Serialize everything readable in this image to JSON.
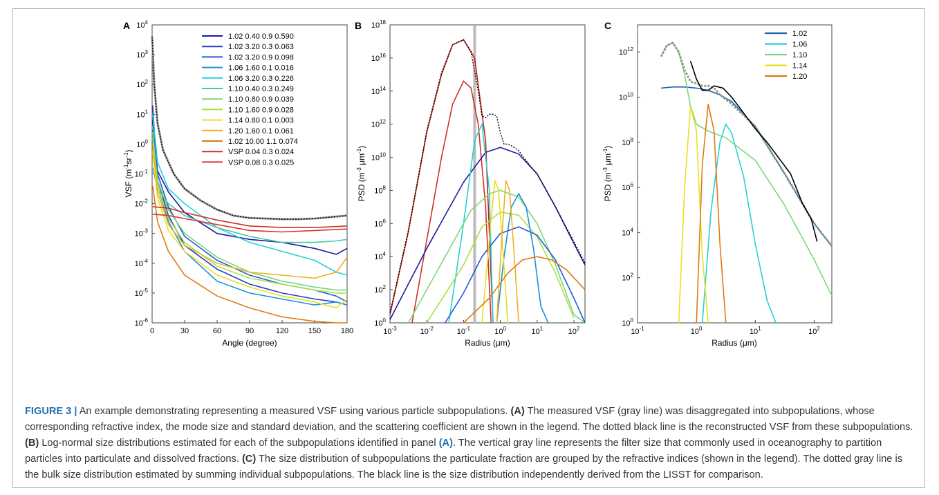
{
  "caption": {
    "figure_label": "FIGURE 3 |",
    "seg1": " An example demonstrating representing a measured VSF using various particle subpopulations. ",
    "b1": "(A)",
    "seg2": " The measured VSF (gray line) was disaggregated into subpopulations, whose corresponding refractive index, the mode size and standard deviation, and the scattering coefficient are shown in the legend. The dotted black line is the reconstructed VSF from these subpopulations. ",
    "b2": "(B)",
    "seg3": " Log-normal size distributions estimated for each of the subpopulations identified in panel ",
    "b3": "(A)",
    "seg4": ". The vertical gray line represents the filter size that commonly used in oceanography to partition particles into particulate and dissolved fractions. ",
    "b4": "(C)",
    "seg5": " The size distribution of subpopulations the particulate fraction are grouped by the refractive indices (shown in the legend). The dotted gray line is the bulk size distribution estimated by summing individual subpopulations. The black line is the size distribution independently derived from the LISST for comparison."
  },
  "chart_data": [
    {
      "panel": "A",
      "type": "line",
      "xlabel": "Angle (degree)",
      "ylabel": "VSF (m-1sr-1)",
      "xlim": [
        0,
        180
      ],
      "ylim_log10": [
        -6,
        4
      ],
      "y_scale": "log",
      "x_ticks": [
        0,
        30,
        60,
        90,
        120,
        150,
        180
      ],
      "y_ticks_exp": [
        -6,
        -5,
        -4,
        -3,
        -2,
        -1,
        0,
        1,
        2,
        3,
        4
      ],
      "legend_position": "top-right",
      "series": [
        {
          "name": "1.02  0.40  0.9  0.590",
          "color": "#1a1aa0",
          "x": [
            0.5,
            5,
            15,
            30,
            60,
            90,
            120,
            150,
            170,
            180
          ],
          "y_log10": [
            0.8,
            -0.9,
            -1.6,
            -2.3,
            -3.0,
            -3.2,
            -3.3,
            -3.5,
            -3.7,
            -3.5
          ]
        },
        {
          "name": "1.02  3.20  0.3  0.063",
          "color": "#2040c8",
          "x": [
            0.5,
            5,
            15,
            30,
            60,
            90,
            120,
            150,
            170,
            180
          ],
          "y_log10": [
            1.3,
            -1.2,
            -2.4,
            -3.4,
            -4.2,
            -4.7,
            -5.0,
            -5.2,
            -5.3,
            -5.4
          ]
        },
        {
          "name": "1.02  3.20  0.9  0.098",
          "color": "#1e5cd8",
          "x": [
            0.5,
            5,
            15,
            30,
            60,
            90,
            120,
            150,
            170,
            180
          ],
          "y_log10": [
            1.0,
            -1.0,
            -2.1,
            -3.1,
            -3.9,
            -4.4,
            -4.7,
            -4.9,
            -5.1,
            -5.3
          ]
        },
        {
          "name": "1.06  1.60  0.1  0.016",
          "color": "#1b8fd8",
          "x": [
            0.5,
            5,
            15,
            30,
            60,
            90,
            120,
            150,
            170,
            180
          ],
          "y_log10": [
            0.5,
            -1.4,
            -2.6,
            -3.6,
            -4.6,
            -5.0,
            -5.2,
            -5.4,
            -5.3,
            -5.4
          ]
        },
        {
          "name": "1.06  3.20  0.3  0.226",
          "color": "#25d0d8",
          "x": [
            0.5,
            5,
            15,
            30,
            60,
            90,
            120,
            150,
            170,
            180
          ],
          "y_log10": [
            1.0,
            -0.6,
            -1.5,
            -2.0,
            -2.8,
            -3.3,
            -3.6,
            -3.9,
            -4.3,
            -4.4
          ]
        },
        {
          "name": "1.10  0.40  0.3  0.249",
          "color": "#44c8a8",
          "x": [
            0.5,
            5,
            15,
            30,
            60,
            90,
            120,
            150,
            170,
            180
          ],
          "y_log10": [
            -0.8,
            -1.5,
            -2.0,
            -2.4,
            -2.8,
            -3.1,
            -3.3,
            -3.3,
            -3.25,
            -3.2
          ]
        },
        {
          "name": "1.10  0.80  0.9  0.039",
          "color": "#7ad878",
          "x": [
            0.5,
            5,
            15,
            30,
            60,
            90,
            120,
            150,
            170,
            180
          ],
          "y_log10": [
            0.2,
            -1.2,
            -2.2,
            -3.0,
            -3.8,
            -4.3,
            -4.6,
            -4.8,
            -4.9,
            -4.9
          ]
        },
        {
          "name": "1.10  1.60  0.9  0.028",
          "color": "#a8e040",
          "x": [
            0.5,
            5,
            15,
            30,
            60,
            90,
            120,
            150,
            170,
            180
          ],
          "y_log10": [
            0.4,
            -1.4,
            -2.5,
            -3.3,
            -4.1,
            -4.5,
            -4.7,
            -4.9,
            -5.0,
            -5.0
          ]
        },
        {
          "name": "1.14  0.80  0.1  0.003",
          "color": "#e8e020",
          "x": [
            0.5,
            5,
            15,
            30,
            60,
            90,
            120,
            150,
            170,
            180
          ],
          "y_log10": [
            -0.3,
            -1.8,
            -2.9,
            -3.6,
            -4.4,
            -4.8,
            -5.1,
            -5.3,
            -5.5,
            -5.2
          ]
        },
        {
          "name": "1.20  1.60  0.1  0.061",
          "color": "#f0b020",
          "x": [
            0.5,
            5,
            15,
            30,
            60,
            90,
            120,
            150,
            170,
            180
          ],
          "y_log10": [
            0.0,
            -1.6,
            -2.7,
            -3.4,
            -4.0,
            -4.3,
            -4.4,
            -4.5,
            -4.3,
            -3.8
          ]
        },
        {
          "name": "1.02  10.00  1.1  0.074",
          "color": "#e07a10",
          "x": [
            0.5,
            5,
            15,
            30,
            60,
            90,
            120,
            150,
            170,
            180
          ],
          "y_log10": [
            -1.4,
            -2.6,
            -3.6,
            -4.4,
            -5.1,
            -5.5,
            -5.8,
            -5.95,
            -6.0,
            -6.0
          ]
        },
        {
          "name": "VSP  0.04  0.3  0.024",
          "color": "#d03020",
          "x": [
            0.5,
            15,
            30,
            60,
            90,
            120,
            150,
            180
          ],
          "y_log10": [
            -2.1,
            -2.15,
            -2.3,
            -2.55,
            -2.75,
            -2.8,
            -2.8,
            -2.75
          ]
        },
        {
          "name": "VSP  0.08  0.3  0.025",
          "color": "#e03030",
          "x": [
            0.5,
            15,
            30,
            60,
            90,
            120,
            150,
            180
          ],
          "y_log10": [
            -2.35,
            -2.4,
            -2.5,
            -2.7,
            -2.9,
            -2.95,
            -2.9,
            -2.85
          ]
        }
      ],
      "measured": {
        "x": [
          0,
          2,
          5,
          10,
          20,
          30,
          45,
          60,
          75,
          90,
          105,
          120,
          135,
          150,
          165,
          180
        ],
        "y_log10": [
          3.6,
          2.0,
          0.7,
          -0.2,
          -1.0,
          -1.5,
          -1.9,
          -2.2,
          -2.4,
          -2.48,
          -2.5,
          -2.52,
          -2.52,
          -2.5,
          -2.45,
          -2.4
        ]
      }
    },
    {
      "panel": "B",
      "type": "line",
      "xlabel": "Radius (μm)",
      "ylabel": "PSD (m-3 μm-1)",
      "x_scale": "log",
      "y_scale": "log",
      "xlim_log10": [
        -3,
        2.3
      ],
      "ylim_log10": [
        0,
        18
      ],
      "x_ticks_exp": [
        -3,
        -2,
        -1,
        0,
        1,
        2
      ],
      "y_ticks_exp": [
        0,
        2,
        4,
        6,
        8,
        10,
        12,
        14,
        16,
        18
      ],
      "filter_size_um": 0.2,
      "series": [
        {
          "color": "#c02010",
          "x_log10": [
            -3.0,
            -2.5,
            -2.0,
            -1.6,
            -1.3,
            -1.0,
            -0.7,
            -0.4,
            -0.2
          ],
          "y_log10": [
            0.5,
            5.5,
            11.5,
            15.0,
            16.8,
            17.1,
            16.0,
            11.0,
            0
          ]
        },
        {
          "color": "#d03020",
          "x_log10": [
            -2.4,
            -2.0,
            -1.6,
            -1.3,
            -1.0,
            -0.8,
            -0.6,
            -0.4,
            -0.25
          ],
          "y_log10": [
            0,
            5.0,
            10.0,
            13.2,
            14.6,
            14.2,
            12.0,
            7.0,
            0
          ]
        },
        {
          "color": "#1a1aa0",
          "x_log10": [
            -3.0,
            -2.0,
            -1.0,
            -0.4,
            0.0,
            0.5,
            1.0,
            1.5,
            2.0,
            2.3
          ],
          "y_log10": [
            0.2,
            4.5,
            8.5,
            10.3,
            10.6,
            10.2,
            9.0,
            7.0,
            4.8,
            3.5
          ]
        },
        {
          "color": "#25d0d8",
          "x_log10": [
            -1.4,
            -1.0,
            -0.7,
            -0.5,
            -0.3,
            -0.2
          ],
          "y_log10": [
            0,
            6.0,
            11.0,
            12.0,
            8.0,
            0
          ]
        },
        {
          "color": "#7ad878",
          "x_log10": [
            -2.5,
            -1.5,
            -0.8,
            -0.3,
            0.0,
            0.5,
            1.0,
            1.5,
            2.0,
            2.3
          ],
          "y_log10": [
            0,
            4.0,
            6.8,
            7.8,
            8.0,
            7.6,
            6.0,
            3.5,
            0.5,
            0
          ]
        },
        {
          "color": "#a8e040",
          "x_log10": [
            -2.0,
            -1.0,
            -0.5,
            0.0,
            0.5,
            1.0,
            1.5,
            2.0
          ],
          "y_log10": [
            0,
            3.5,
            5.8,
            6.7,
            6.5,
            5.2,
            3.0,
            0.3
          ]
        },
        {
          "color": "#1e5cd8",
          "x_log10": [
            -1.5,
            -1.0,
            -0.5,
            0.0,
            0.5,
            1.0,
            1.5,
            2.0,
            2.3
          ],
          "y_log10": [
            0,
            1.8,
            4.0,
            5.4,
            5.8,
            5.3,
            3.8,
            1.5,
            0
          ]
        },
        {
          "color": "#1b8fd8",
          "x_log10": [
            -0.1,
            0.1,
            0.3,
            0.5,
            0.7,
            0.9,
            1.1,
            1.3
          ],
          "y_log10": [
            0,
            4.0,
            7.0,
            7.8,
            7.0,
            4.5,
            1.0,
            0
          ]
        },
        {
          "color": "#e8e020",
          "x_log10": [
            -0.5,
            -0.3,
            -0.15,
            -0.05,
            0.05,
            0.2
          ],
          "y_log10": [
            0,
            5.0,
            8.6,
            8.0,
            5.0,
            0
          ]
        },
        {
          "color": "#f0b020",
          "x_log10": [
            -0.1,
            0.05,
            0.15,
            0.25,
            0.35,
            0.5
          ],
          "y_log10": [
            0,
            5.5,
            8.6,
            8.0,
            5.0,
            0
          ]
        },
        {
          "color": "#e07a10",
          "x_log10": [
            -1.0,
            -0.3,
            0.2,
            0.6,
            1.0,
            1.4,
            1.8,
            2.3
          ],
          "y_log10": [
            0,
            1.5,
            3.0,
            3.8,
            4.0,
            3.8,
            3.2,
            2.0
          ]
        }
      ],
      "bulk": {
        "x_log10": [
          -3.0,
          -2.5,
          -2.0,
          -1.6,
          -1.3,
          -1.0,
          -0.8,
          -0.6,
          -0.5,
          -0.4,
          -0.3,
          -0.2,
          -0.1,
          0.0,
          0.1,
          0.2,
          0.3,
          0.5,
          0.8,
          1.0,
          1.5,
          2.0,
          2.3
        ],
        "y_log10": [
          0.6,
          5.6,
          11.6,
          15.1,
          16.8,
          17.1,
          16.4,
          14.0,
          12.5,
          12.4,
          12.6,
          12.6,
          12.5,
          11.5,
          10.8,
          10.8,
          10.7,
          10.4,
          9.5,
          9.0,
          7.0,
          4.9,
          3.6
        ]
      }
    },
    {
      "panel": "C",
      "type": "line",
      "xlabel": "Radius (μm)",
      "ylabel": "PSD (m-3 μm-1)",
      "x_scale": "log",
      "y_scale": "log",
      "xlim_log10": [
        -1,
        2.3
      ],
      "ylim_log10": [
        0,
        13.2
      ],
      "x_ticks_exp": [
        -1,
        0,
        1,
        2
      ],
      "y_ticks_exp": [
        0,
        2,
        4,
        6,
        8,
        10,
        12
      ],
      "legend_position": "top-right",
      "series": [
        {
          "name": "1.02",
          "color": "#1a60b8",
          "x_log10": [
            -0.6,
            -0.4,
            -0.2,
            0.0,
            0.2,
            0.4,
            0.6,
            1.0,
            1.5,
            2.0,
            2.3
          ],
          "y_log10": [
            10.4,
            10.45,
            10.45,
            10.4,
            10.3,
            10.1,
            9.8,
            8.7,
            6.6,
            4.4,
            3.4
          ]
        },
        {
          "name": "1.06",
          "color": "#25d0d8",
          "x_log10": [
            0.1,
            0.25,
            0.4,
            0.5,
            0.6,
            0.8,
            1.0,
            1.2,
            1.35
          ],
          "y_log10": [
            0,
            5.0,
            8.0,
            8.8,
            8.4,
            6.5,
            3.5,
            1.0,
            0
          ]
        },
        {
          "name": "1.10",
          "color": "#7ad878",
          "x_log10": [
            -0.6,
            -0.5,
            -0.4,
            -0.3,
            -0.2,
            -0.1,
            0.0,
            0.2,
            0.5,
            1.0,
            1.5,
            2.0,
            2.3
          ],
          "y_log10": [
            11.8,
            12.3,
            12.4,
            12.0,
            11.0,
            9.6,
            8.8,
            8.5,
            8.2,
            7.2,
            5.2,
            2.8,
            1.2
          ]
        },
        {
          "name": "1.14",
          "color": "#e8e020",
          "x_log10": [
            -0.3,
            -0.2,
            -0.1,
            0.0,
            0.1,
            0.2
          ],
          "y_log10": [
            0,
            6.0,
            9.6,
            8.5,
            3.0,
            0
          ]
        },
        {
          "name": "1.20",
          "color": "#e07a10",
          "x_log10": [
            0.0,
            0.1,
            0.2,
            0.3,
            0.4,
            0.5
          ],
          "y_log10": [
            0,
            7.0,
            9.7,
            8.5,
            3.5,
            0
          ]
        }
      ],
      "bulk": {
        "x_log10": [
          -0.6,
          -0.5,
          -0.4,
          -0.3,
          -0.2,
          -0.1,
          0.0,
          0.1,
          0.2,
          0.3,
          0.4,
          0.6,
          1.0,
          1.5,
          2.0,
          2.3
        ],
        "y_log10": [
          11.8,
          12.3,
          12.4,
          12.0,
          11.2,
          10.7,
          10.6,
          10.5,
          10.5,
          10.4,
          10.1,
          9.7,
          8.7,
          6.6,
          4.4,
          3.4
        ]
      },
      "lisst": {
        "x_log10": [
          -0.1,
          0.0,
          0.1,
          0.2,
          0.3,
          0.45,
          0.6,
          0.8,
          1.0,
          1.2,
          1.4,
          1.6,
          1.8,
          1.95,
          2.05
        ],
        "y_log10": [
          11.6,
          10.8,
          10.3,
          10.3,
          10.5,
          10.4,
          10.0,
          9.3,
          8.6,
          8.0,
          7.3,
          6.6,
          5.3,
          4.6,
          3.6
        ]
      }
    }
  ]
}
